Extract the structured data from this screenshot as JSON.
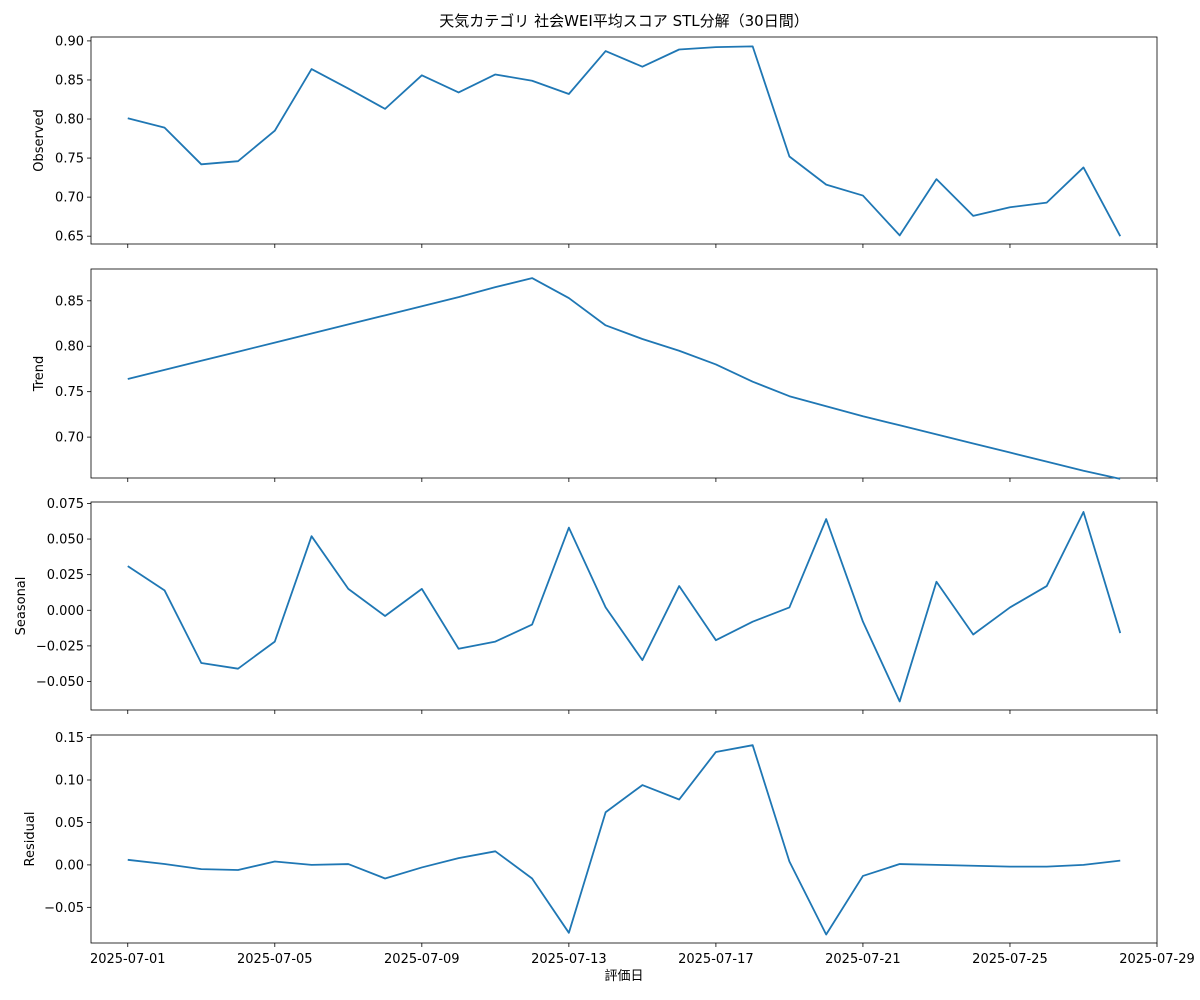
{
  "chart_data": {
    "type": "line",
    "title": "天気カテゴリ 社会WEI平均スコア STL分解（30日間）",
    "xlabel": "評価日",
    "x": [
      "2025-07-01",
      "2025-07-02",
      "2025-07-03",
      "2025-07-04",
      "2025-07-05",
      "2025-07-06",
      "2025-07-07",
      "2025-07-08",
      "2025-07-09",
      "2025-07-10",
      "2025-07-11",
      "2025-07-12",
      "2025-07-13",
      "2025-07-14",
      "2025-07-15",
      "2025-07-16",
      "2025-07-17",
      "2025-07-18",
      "2025-07-19",
      "2025-07-20",
      "2025-07-21",
      "2025-07-22",
      "2025-07-23",
      "2025-07-24",
      "2025-07-25",
      "2025-07-26",
      "2025-07-27",
      "2025-07-28"
    ],
    "x_ticks": [
      "2025-07-01",
      "2025-07-05",
      "2025-07-09",
      "2025-07-13",
      "2025-07-17",
      "2025-07-21",
      "2025-07-25",
      "2025-07-29"
    ],
    "xlim": [
      "2025-06-30",
      "2025-07-29"
    ],
    "line_color": "#1f77b4",
    "panels": [
      {
        "name": "Observed",
        "ylabel": "Observed",
        "ylim": [
          0.64,
          0.905
        ],
        "yticks": [
          "0.65",
          "0.70",
          "0.75",
          "0.80",
          "0.85",
          "0.90"
        ],
        "values": [
          0.801,
          0.789,
          0.742,
          0.746,
          0.785,
          0.864,
          0.839,
          0.813,
          0.856,
          0.834,
          0.857,
          0.849,
          0.832,
          0.887,
          0.867,
          0.889,
          0.892,
          0.893,
          0.752,
          0.716,
          0.702,
          0.651,
          0.723,
          0.676,
          0.687,
          0.693,
          0.738,
          0.65
        ]
      },
      {
        "name": "Trend",
        "ylabel": "Trend",
        "ylim": [
          0.655,
          0.885
        ],
        "yticks": [
          "0.70",
          "0.75",
          "0.80",
          "0.85"
        ],
        "values": [
          0.764,
          0.774,
          0.784,
          0.794,
          0.804,
          0.814,
          0.824,
          0.834,
          0.844,
          0.854,
          0.865,
          0.875,
          0.853,
          0.823,
          0.808,
          0.795,
          0.78,
          0.761,
          0.745,
          0.734,
          0.723,
          0.713,
          0.703,
          0.693,
          0.683,
          0.673,
          0.663,
          0.654
        ]
      },
      {
        "name": "Seasonal",
        "ylabel": "Seasonal",
        "ylim": [
          -0.07,
          0.076
        ],
        "yticks": [
          "−0.050",
          "−0.025",
          "0.000",
          "0.025",
          "0.050",
          "0.075"
        ],
        "values": [
          0.031,
          0.014,
          -0.037,
          -0.041,
          -0.022,
          0.052,
          0.015,
          -0.004,
          0.015,
          -0.027,
          -0.022,
          -0.01,
          0.058,
          0.002,
          -0.035,
          0.017,
          -0.021,
          -0.008,
          0.002,
          0.064,
          -0.008,
          -0.064,
          0.02,
          -0.017,
          0.002,
          0.017,
          0.069,
          -0.016
        ]
      },
      {
        "name": "Residual",
        "ylabel": "Residual",
        "ylim": [
          -0.092,
          0.153
        ],
        "yticks": [
          "−0.05",
          "0.00",
          "0.05",
          "0.10",
          "0.15"
        ],
        "values": [
          0.006,
          0.001,
          -0.005,
          -0.006,
          0.004,
          0.0,
          0.001,
          -0.016,
          -0.003,
          0.008,
          0.016,
          -0.016,
          -0.08,
          0.062,
          0.094,
          0.077,
          0.133,
          0.141,
          0.004,
          -0.082,
          -0.013,
          0.001,
          0.0,
          -0.001,
          -0.002,
          -0.002,
          0.0,
          0.005
        ]
      }
    ]
  }
}
